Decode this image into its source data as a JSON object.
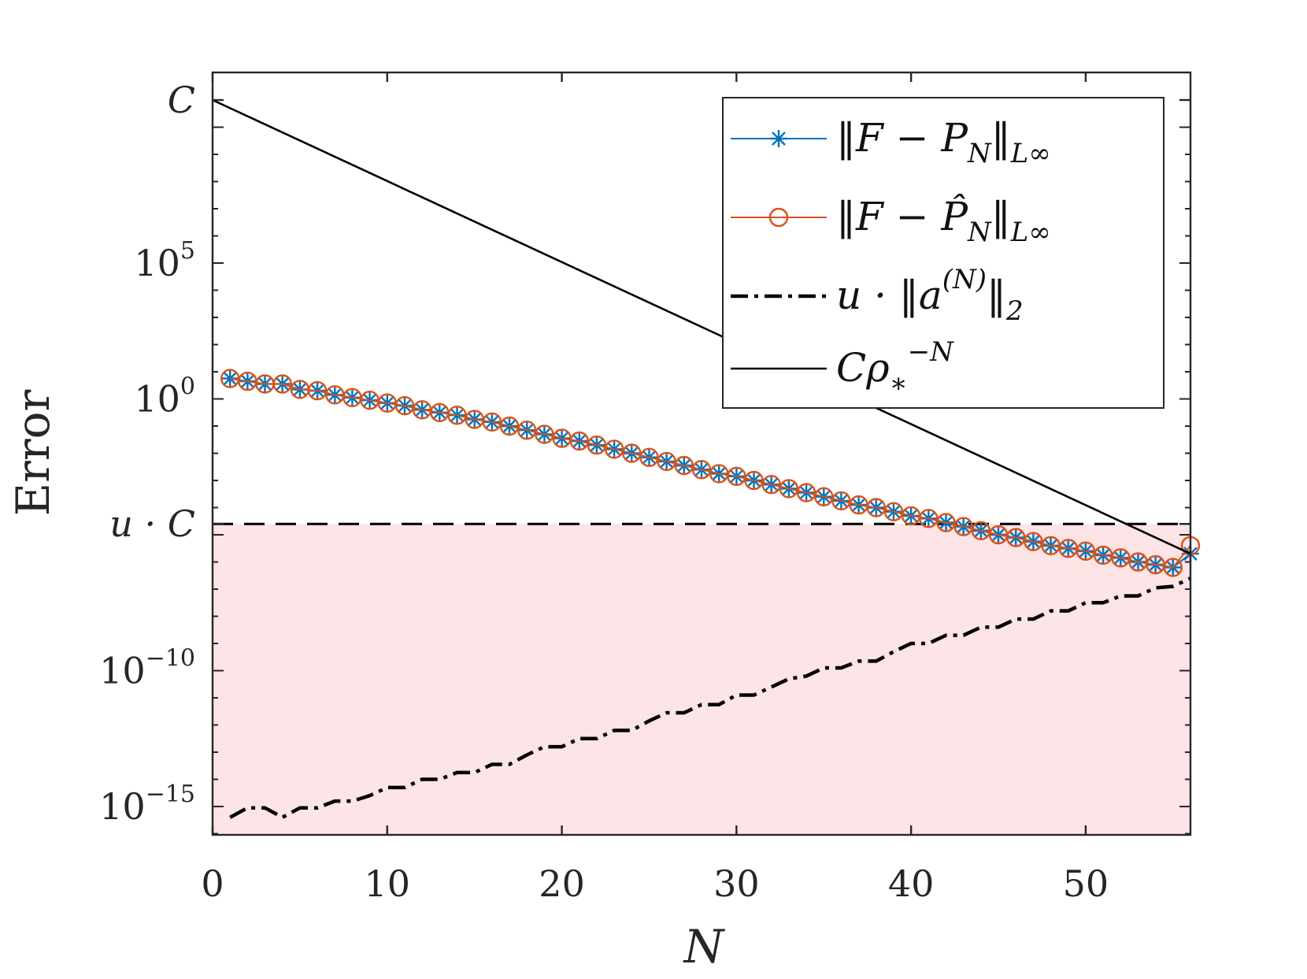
{
  "chart_data": {
    "type": "line",
    "xlabel": "N",
    "ylabel": "Error",
    "xlim": [
      0,
      56
    ],
    "ylim_log10": [
      -16,
      11
    ],
    "y_scale": "log",
    "x_ticks": [
      0,
      10,
      20,
      30,
      40,
      50
    ],
    "x_tick_labels": [
      "0",
      "10",
      "20",
      "30",
      "40",
      "50"
    ],
    "y_ticks": [
      {
        "exp": -15,
        "base": "10",
        "power": "−15"
      },
      {
        "exp": -10,
        "base": "10",
        "power": "−10"
      },
      {
        "exp": 0,
        "base": "10",
        "power": "0"
      },
      {
        "exp": 5,
        "base": "10",
        "power": "5"
      }
    ],
    "y_named_ticks": [
      {
        "exp": 11,
        "label": "C"
      },
      {
        "exp": -4.6,
        "label": "u · C"
      }
    ],
    "shaded_region": {
      "below_exp": -4.6,
      "color": "#fde4e6"
    },
    "grid": false,
    "legend_placement": "top-right",
    "series": [
      {
        "name": "‖F − P_N‖_L∞",
        "legend": {
          "pre": "‖F − P",
          "sub1": "N",
          "mid": "‖",
          "sub2": "L∞"
        },
        "color": "#0072BD",
        "marker": "asterisk",
        "x": [
          1,
          2,
          3,
          4,
          5,
          6,
          7,
          8,
          9,
          10,
          11,
          12,
          13,
          14,
          15,
          16,
          17,
          18,
          19,
          20,
          21,
          22,
          23,
          24,
          25,
          26,
          27,
          28,
          29,
          30,
          31,
          32,
          33,
          34,
          35,
          36,
          37,
          38,
          39,
          40,
          41,
          42,
          43,
          44,
          45,
          46,
          47,
          48,
          49,
          50,
          51,
          52,
          53,
          54,
          55,
          56
        ],
        "log10_y": [
          0.75,
          0.65,
          0.55,
          0.55,
          0.35,
          0.3,
          0.15,
          0.05,
          -0.05,
          -0.15,
          -0.25,
          -0.4,
          -0.5,
          -0.6,
          -0.75,
          -0.85,
          -1.0,
          -1.15,
          -1.3,
          -1.45,
          -1.55,
          -1.7,
          -1.85,
          -2.0,
          -2.15,
          -2.3,
          -2.45,
          -2.6,
          -2.75,
          -2.85,
          -3.0,
          -3.15,
          -3.3,
          -3.45,
          -3.6,
          -3.75,
          -3.9,
          -4.0,
          -4.15,
          -4.3,
          -4.4,
          -4.55,
          -4.7,
          -4.85,
          -5.0,
          -5.1,
          -5.25,
          -5.4,
          -5.5,
          -5.6,
          -5.75,
          -5.85,
          -6.0,
          -6.1,
          -6.2,
          -5.7
        ]
      },
      {
        "name": "‖F − P̂_N‖_L∞",
        "legend": {
          "pre": "‖F − P̂",
          "sub1": "N",
          "mid": "‖",
          "sub2": "L∞"
        },
        "color": "#D95319",
        "marker": "circle",
        "x": [
          1,
          2,
          3,
          4,
          5,
          6,
          7,
          8,
          9,
          10,
          11,
          12,
          13,
          14,
          15,
          16,
          17,
          18,
          19,
          20,
          21,
          22,
          23,
          24,
          25,
          26,
          27,
          28,
          29,
          30,
          31,
          32,
          33,
          34,
          35,
          36,
          37,
          38,
          39,
          40,
          41,
          42,
          43,
          44,
          45,
          46,
          47,
          48,
          49,
          50,
          51,
          52,
          53,
          54,
          55,
          56
        ],
        "log10_y": [
          0.75,
          0.65,
          0.55,
          0.55,
          0.35,
          0.3,
          0.15,
          0.05,
          -0.05,
          -0.15,
          -0.25,
          -0.4,
          -0.5,
          -0.6,
          -0.75,
          -0.85,
          -1.0,
          -1.15,
          -1.3,
          -1.45,
          -1.55,
          -1.7,
          -1.85,
          -2.0,
          -2.15,
          -2.3,
          -2.45,
          -2.6,
          -2.75,
          -2.85,
          -3.0,
          -3.15,
          -3.3,
          -3.45,
          -3.6,
          -3.75,
          -3.9,
          -4.0,
          -4.15,
          -4.3,
          -4.4,
          -4.55,
          -4.7,
          -4.85,
          -5.0,
          -5.1,
          -5.25,
          -5.4,
          -5.5,
          -5.6,
          -5.75,
          -5.85,
          -6.0,
          -6.1,
          -6.2,
          -5.4
        ]
      },
      {
        "name": "u · ‖a^(N)‖_2",
        "legend": {
          "pre": "u · ‖a",
          "sup": "(N)",
          "mid": "‖",
          "sub2": "2"
        },
        "color": "#000000",
        "line_style": "dash-dot",
        "x": [
          1,
          2,
          3,
          4,
          5,
          6,
          7,
          8,
          9,
          10,
          11,
          12,
          13,
          14,
          15,
          16,
          17,
          18,
          19,
          20,
          21,
          22,
          23,
          24,
          25,
          26,
          27,
          28,
          29,
          30,
          31,
          32,
          33,
          34,
          35,
          36,
          37,
          38,
          39,
          40,
          41,
          42,
          43,
          44,
          45,
          46,
          47,
          48,
          49,
          50,
          51,
          52,
          53,
          54,
          55,
          56
        ],
        "log10_y": [
          -15.4,
          -15.05,
          -15.05,
          -15.4,
          -15.05,
          -15.05,
          -14.8,
          -14.8,
          -14.6,
          -14.3,
          -14.3,
          -14.0,
          -14.0,
          -13.75,
          -13.75,
          -13.45,
          -13.45,
          -13.1,
          -12.8,
          -12.8,
          -12.5,
          -12.5,
          -12.2,
          -12.2,
          -11.85,
          -11.55,
          -11.55,
          -11.25,
          -11.25,
          -10.9,
          -10.9,
          -10.6,
          -10.3,
          -10.2,
          -9.9,
          -9.9,
          -9.65,
          -9.65,
          -9.3,
          -9.0,
          -9.0,
          -8.7,
          -8.7,
          -8.4,
          -8.4,
          -8.1,
          -8.1,
          -7.8,
          -7.8,
          -7.5,
          -7.5,
          -7.25,
          -7.25,
          -6.95,
          -6.9,
          -6.6
        ]
      },
      {
        "name": "Cρ*^−N",
        "legend": {
          "pre": "Cρ",
          "sub2": "∗",
          "sup": "−N"
        },
        "color": "#000000",
        "line_style": "solid",
        "x": [
          0,
          56
        ],
        "log10_y": [
          11,
          -5.7
        ]
      }
    ],
    "reference_line": {
      "exp": -4.6,
      "style": "dashed",
      "color": "#000000"
    }
  }
}
